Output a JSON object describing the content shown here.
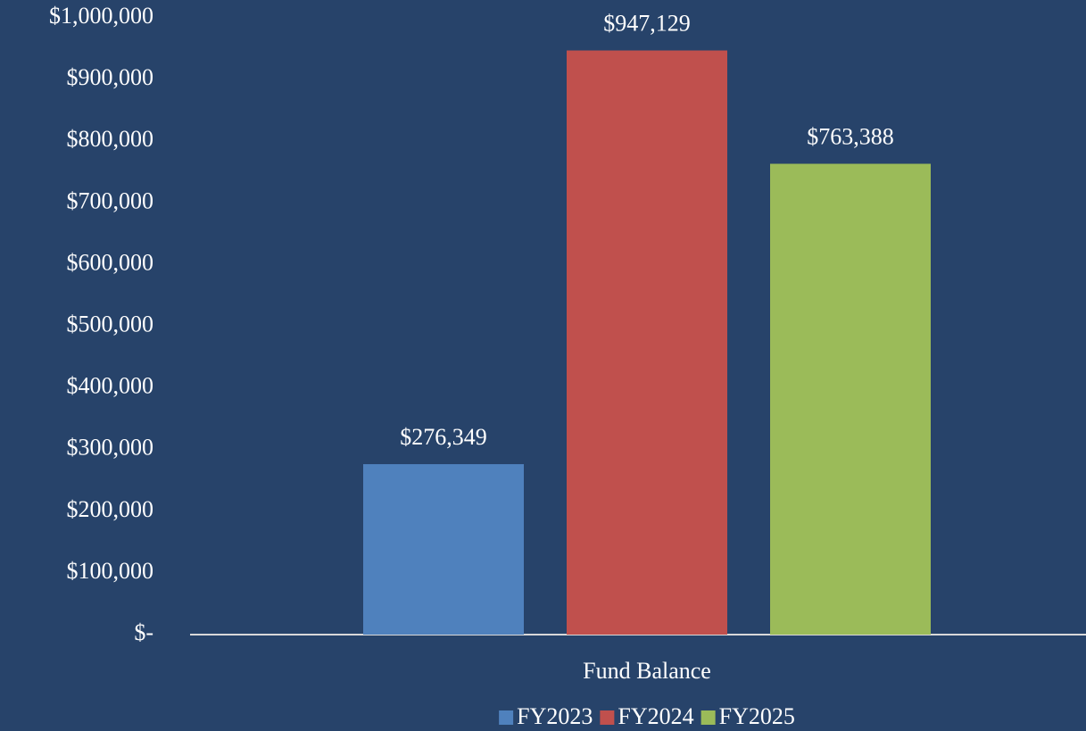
{
  "chart_data": {
    "type": "bar",
    "categories": [
      "Fund Balance"
    ],
    "series": [
      {
        "name": "FY2023",
        "color": "#4f81bd",
        "values": [
          276349
        ],
        "value_labels": [
          "$276,349"
        ]
      },
      {
        "name": "FY2024",
        "color": "#c0504d",
        "values": [
          947129
        ],
        "value_labels": [
          "$947,129"
        ]
      },
      {
        "name": "FY2025",
        "color": "#9bbb59",
        "values": [
          763388
        ],
        "value_labels": [
          "$763,388"
        ]
      }
    ],
    "ylim": [
      0,
      1000000
    ],
    "yticks": [
      {
        "value": 0,
        "label": "$-"
      },
      {
        "value": 100000,
        "label": "$100,000"
      },
      {
        "value": 200000,
        "label": "$200,000"
      },
      {
        "value": 300000,
        "label": "$300,000"
      },
      {
        "value": 400000,
        "label": "$400,000"
      },
      {
        "value": 500000,
        "label": "$500,000"
      },
      {
        "value": 600000,
        "label": "$600,000"
      },
      {
        "value": 700000,
        "label": "$700,000"
      },
      {
        "value": 800000,
        "label": "$800,000"
      },
      {
        "value": 900000,
        "label": "$900,000"
      },
      {
        "value": 1000000,
        "label": "$1,000,000"
      }
    ],
    "grid": false,
    "legend": "bottom"
  }
}
